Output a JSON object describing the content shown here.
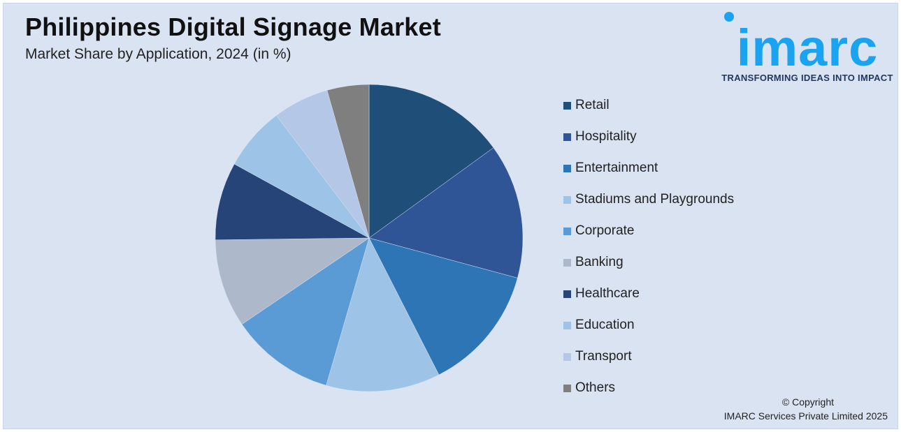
{
  "header": {
    "title": "Philippines Digital Signage Market",
    "subtitle": "Market Share by Application, 2024 (in %)"
  },
  "logo": {
    "text": "imarc",
    "tagline": "TRANSFORMING IDEAS INTO IMPACT",
    "color": "#1aa3f0"
  },
  "chart_data": {
    "type": "pie",
    "title": "Philippines Digital Signage Market",
    "subtitle": "Market Share by Application, 2024 (in %)",
    "legend_position": "right",
    "start": "12 o'clock, clockwise",
    "slices": [
      {
        "label": "Retail",
        "value": 15.0,
        "color": "#1f4e79"
      },
      {
        "label": "Hospitality",
        "value": 14.2,
        "color": "#2f5597"
      },
      {
        "label": "Entertainment",
        "value": 13.3,
        "color": "#2e75b6"
      },
      {
        "label": "Stadiums and Playgrounds",
        "value": 12.0,
        "color": "#9dc3e6"
      },
      {
        "label": "Corporate",
        "value": 11.0,
        "color": "#5b9bd5"
      },
      {
        "label": "Banking",
        "value": 9.3,
        "color": "#adb9ca"
      },
      {
        "label": "Healthcare",
        "value": 8.2,
        "color": "#264478"
      },
      {
        "label": "Education",
        "value": 6.7,
        "color": "#9dc3e6"
      },
      {
        "label": "Transport",
        "value": 5.9,
        "color": "#b4c7e7"
      },
      {
        "label": "Others",
        "value": 4.4,
        "color": "#7f7f7f"
      }
    ]
  },
  "footer": {
    "copyright_line1": "© Copyright",
    "copyright_line2": "IMARC Services Private Limited 2025"
  }
}
